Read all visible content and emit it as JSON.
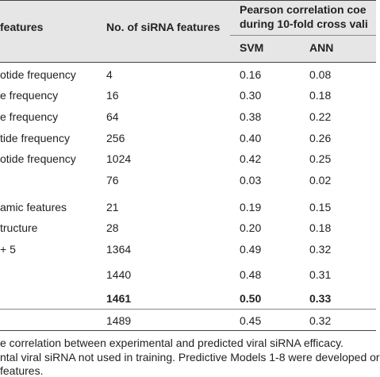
{
  "headers": {
    "features": "features",
    "count": "No. of siRNA features",
    "pearson_line1": "Pearson correlation coe",
    "pearson_line2": "during 10-fold cross vali",
    "svm": "SVM",
    "ann": "ANN"
  },
  "rows": [
    {
      "feature": "otide frequency",
      "count": "4",
      "svm": "0.16",
      "ann": "0.08",
      "bold": false
    },
    {
      "feature": "e frequency",
      "count": "16",
      "svm": "0.30",
      "ann": "0.18",
      "bold": false
    },
    {
      "feature": "e frequency",
      "count": "64",
      "svm": "0.38",
      "ann": "0.22",
      "bold": false
    },
    {
      "feature": "tide frequency",
      "count": "256",
      "svm": "0.40",
      "ann": "0.26",
      "bold": false
    },
    {
      "feature": "otide frequency",
      "count": "1024",
      "svm": "0.42",
      "ann": "0.25",
      "bold": false
    },
    {
      "feature": "",
      "count": "76",
      "svm": "0.03",
      "ann": "0.02",
      "bold": false
    },
    {
      "feature": "amic features",
      "count": "21",
      "svm": "0.19",
      "ann": "0.15",
      "bold": false
    },
    {
      "feature": "tructure",
      "count": "28",
      "svm": "0.20",
      "ann": "0.18",
      "bold": false
    },
    {
      "feature": "+ 5",
      "count": "1364",
      "svm": "0.49",
      "ann": "0.32",
      "bold": false
    },
    {
      "feature": "",
      "count": "1440",
      "svm": "0.48",
      "ann": "0.31",
      "bold": false
    },
    {
      "feature": "",
      "count": "1461",
      "svm": "0.50",
      "ann": "0.33",
      "bold": true
    },
    {
      "feature": "",
      "count": "1489",
      "svm": "0.45",
      "ann": "0.32",
      "bold": false
    }
  ],
  "footnotes": [
    "e correlation between experimental and predicted viral siRNA efficacy.",
    "ntal viral siRNA not used in training. Predictive Models 1-8 were developed or",
    "features."
  ]
}
